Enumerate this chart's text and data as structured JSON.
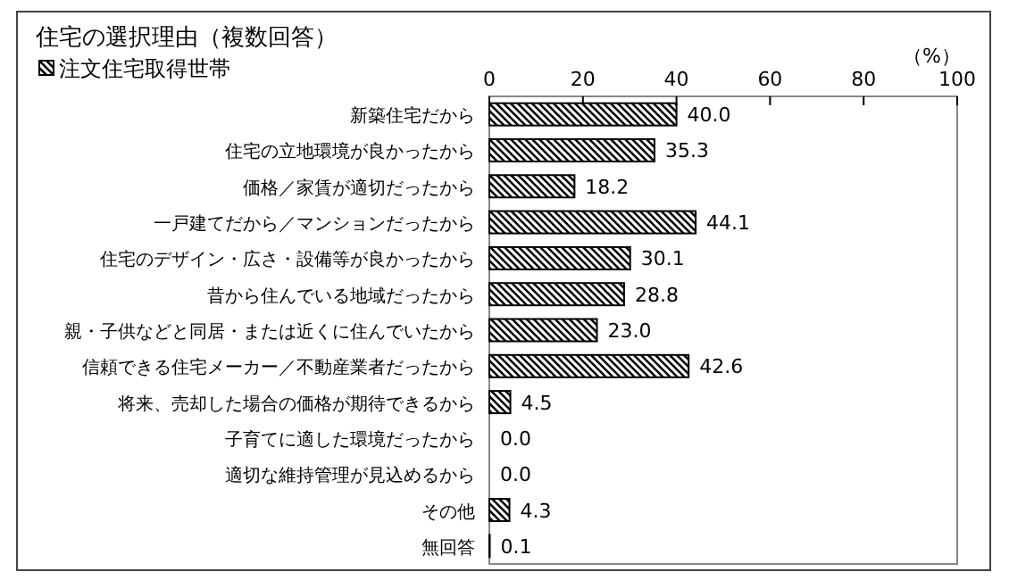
{
  "chart_data": {
    "type": "bar",
    "orientation": "horizontal",
    "title": "住宅の選択理由（複数回答）",
    "xlabel": "（%）",
    "legend": "top left",
    "grid": false,
    "categories": [
      "新築住宅だから",
      "住宅の立地環境が良かったから",
      "価格／家賃が適切だったから",
      "一戸建てだから／マンションだったから",
      "住宅のデザイン・広さ・設備等が良かったから",
      "昔から住んでいる地域だったから",
      "親・子供などと同居・または近くに住んでいたから",
      "信頼できる住宅メーカー／不動産業者だったから",
      "将来、売却した場合の価格が期待できるから",
      "子育てに適した環境だったから",
      "適切な維持管理が見込めるから",
      "その他",
      "無回答"
    ],
    "xlim": [
      0,
      100
    ],
    "xticks": [
      0,
      20,
      40,
      60,
      80,
      100
    ],
    "series": [
      {
        "name": "注文住宅取得世帯",
        "color": "#000000",
        "values": [
          40.0,
          35.3,
          18.2,
          44.1,
          30.1,
          28.8,
          23.0,
          42.6,
          4.5,
          0.0,
          0.0,
          4.3,
          0.1
        ],
        "value_labels": [
          "40.0",
          "35.3",
          "18.2",
          "44.1",
          "30.1",
          "28.8",
          "23.0",
          "42.6",
          "4.5",
          "0.0",
          "0.0",
          "4.3",
          "0.1"
        ]
      }
    ]
  }
}
